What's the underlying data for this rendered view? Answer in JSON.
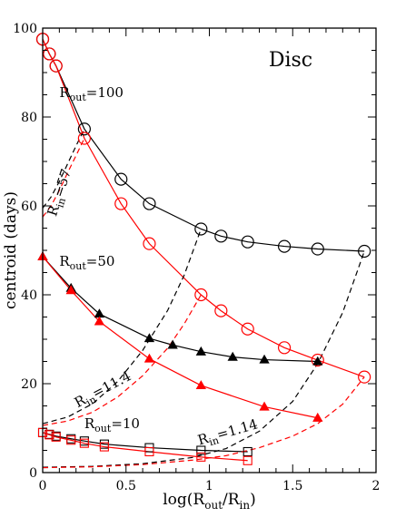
{
  "chart_data": {
    "type": "line",
    "title": "Disc",
    "xlabel": {
      "prefix": "log(R",
      "sub1": "out",
      "mid": "/R",
      "sub2": "in",
      "suffix": ")"
    },
    "ylabel": "centroid (days)",
    "xlim": [
      0,
      2
    ],
    "ylim": [
      0,
      100
    ],
    "xticks": [
      "0",
      "0.5",
      "1",
      "1.5",
      "2"
    ],
    "yticks": [
      "0",
      "20",
      "40",
      "60",
      "80",
      "100"
    ],
    "grid": false,
    "colors": {
      "black": "#000000",
      "red": "#ff0000"
    },
    "annotations": [
      {
        "id": "rout100",
        "base": "R",
        "sub": "out",
        "value": "=100",
        "x": 0.1,
        "y": 84.5,
        "rotate": 0
      },
      {
        "id": "rout50",
        "base": "R",
        "sub": "out",
        "value": "=50",
        "x": 0.1,
        "y": 46.5,
        "rotate": 0
      },
      {
        "id": "rout10",
        "base": "R",
        "sub": "out",
        "value": "=10",
        "x": 0.25,
        "y": 10.0,
        "rotate": 0
      },
      {
        "id": "rin57",
        "base": "R",
        "sub": "in",
        "value": "=57",
        "x": 0.08,
        "y": 57.5,
        "rotate": -72
      },
      {
        "id": "rin114",
        "base": "R",
        "sub": "in",
        "value": "=11.4",
        "x": 0.21,
        "y": 14.6,
        "rotate": -28
      },
      {
        "id": "rin114b",
        "base": "R",
        "sub": "in",
        "value": "=1.14",
        "x": 0.94,
        "y": 6.2,
        "rotate": -16
      }
    ],
    "series": [
      {
        "name": "Rout=100 black",
        "color": "#000000",
        "marker": "circle",
        "line": "solid",
        "x": [
          0.0,
          0.04,
          0.08,
          0.25,
          0.47,
          0.64,
          0.95,
          1.07,
          1.23,
          1.45,
          1.65,
          1.93
        ],
        "y": [
          97.5,
          94.2,
          91.5,
          77.3,
          66.0,
          60.5,
          54.8,
          53.2,
          51.9,
          50.9,
          50.3,
          49.8
        ]
      },
      {
        "name": "Rout=100 red",
        "color": "#ff0000",
        "marker": "circle",
        "line": "solid",
        "x": [
          0.0,
          0.04,
          0.08,
          0.25,
          0.47,
          0.64,
          0.95,
          1.07,
          1.23,
          1.45,
          1.65,
          1.93
        ],
        "y": [
          97.5,
          94.2,
          91.5,
          75.2,
          60.5,
          51.5,
          40.0,
          36.4,
          32.3,
          28.1,
          25.3,
          21.5
        ]
      },
      {
        "name": "Rout=50 black",
        "color": "#000000",
        "marker": "triangle",
        "line": "solid",
        "x": [
          0.0,
          0.17,
          0.34,
          0.64,
          0.78,
          0.95,
          1.14,
          1.33,
          1.65
        ],
        "y": [
          48.6,
          41.5,
          35.7,
          30.2,
          28.7,
          27.2,
          26.0,
          25.4,
          25.0
        ]
      },
      {
        "name": "Rout=50 red",
        "color": "#ff0000",
        "marker": "triangle",
        "line": "solid",
        "x": [
          0.0,
          0.17,
          0.34,
          0.64,
          0.95,
          1.33,
          1.65
        ],
        "y": [
          48.6,
          41.0,
          34.0,
          25.6,
          19.6,
          14.8,
          12.3
        ]
      },
      {
        "name": "Rout=10 black",
        "color": "#000000",
        "marker": "square",
        "line": "solid",
        "x": [
          0.0,
          0.04,
          0.08,
          0.17,
          0.25,
          0.37,
          0.64,
          0.95,
          1.23
        ],
        "y": [
          9.0,
          8.6,
          8.2,
          7.6,
          7.1,
          6.4,
          5.6,
          5.0,
          4.7
        ]
      },
      {
        "name": "Rout=10 red",
        "color": "#ff0000",
        "marker": "square",
        "line": "solid",
        "x": [
          0.0,
          0.04,
          0.08,
          0.17,
          0.25,
          0.37,
          0.64,
          0.95,
          1.23
        ],
        "y": [
          9.0,
          8.5,
          8.0,
          7.3,
          6.6,
          5.8,
          4.7,
          3.5,
          2.7
        ]
      },
      {
        "name": "Rin=57 black",
        "color": "#000000",
        "marker": "none",
        "line": "dashed",
        "x": [
          0.0,
          0.05,
          0.1,
          0.15,
          0.2,
          0.25
        ],
        "y": [
          59.5,
          62.0,
          65.5,
          69.5,
          73.5,
          77.3
        ]
      },
      {
        "name": "Rin=57 red",
        "color": "#ff0000",
        "marker": "none",
        "line": "dashed",
        "x": [
          0.0,
          0.05,
          0.1,
          0.15,
          0.2,
          0.25
        ],
        "y": [
          57.5,
          60.0,
          63.5,
          67.5,
          71.3,
          75.2
        ]
      },
      {
        "name": "Rin=11.4 black",
        "color": "#000000",
        "marker": "none",
        "line": "dashed",
        "x": [
          0.0,
          0.15,
          0.3,
          0.45,
          0.6,
          0.75,
          0.85,
          0.95
        ],
        "y": [
          11.0,
          12.5,
          15.5,
          20.5,
          27.5,
          36.5,
          44.5,
          54.8
        ]
      },
      {
        "name": "Rin=11.4 red",
        "color": "#ff0000",
        "marker": "none",
        "line": "dashed",
        "x": [
          0.0,
          0.15,
          0.3,
          0.45,
          0.6,
          0.75,
          0.85,
          0.95
        ],
        "y": [
          10.6,
          11.6,
          13.6,
          17.0,
          21.8,
          28.0,
          33.5,
          40.0
        ]
      },
      {
        "name": "Rin=1.14 black",
        "color": "#000000",
        "marker": "none",
        "line": "dashed",
        "x": [
          0.0,
          0.3,
          0.6,
          0.9,
          1.1,
          1.3,
          1.5,
          1.65,
          1.8,
          1.93
        ],
        "y": [
          1.2,
          1.4,
          2.0,
          3.4,
          5.4,
          9.3,
          16.0,
          24.5,
          36.0,
          49.8
        ]
      },
      {
        "name": "Rin=1.14 red",
        "color": "#ff0000",
        "marker": "none",
        "line": "dashed",
        "x": [
          0.0,
          0.3,
          0.6,
          0.9,
          1.1,
          1.3,
          1.5,
          1.65,
          1.8,
          1.93
        ],
        "y": [
          1.1,
          1.3,
          1.8,
          2.8,
          3.8,
          5.6,
          8.2,
          11.0,
          15.4,
          21.5
        ]
      }
    ]
  }
}
